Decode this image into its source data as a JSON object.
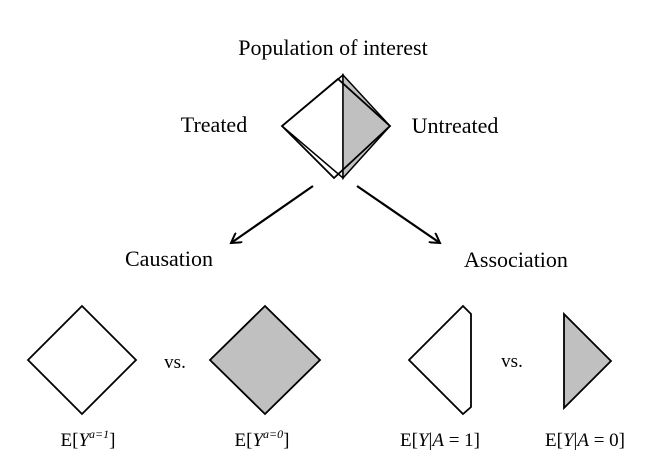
{
  "title": "Population of interest",
  "top_labels": {
    "left": "Treated",
    "right": "Untreated"
  },
  "branches": {
    "left": "Causation",
    "right": "Association"
  },
  "comparisons": {
    "left": {
      "separator": "vs.",
      "a": {
        "prefix": "E[",
        "var": "Y",
        "sup": "a=1",
        "suffix": "]"
      },
      "b": {
        "prefix": "E[",
        "var": "Y",
        "sup": "a=0",
        "suffix": "]"
      }
    },
    "right": {
      "separator": "vs.",
      "a": {
        "prefix": "E[",
        "var": "Y",
        "mid": "|",
        "avar": "A",
        "val": " = 1]"
      },
      "b": {
        "prefix": "E[",
        "var": "Y",
        "mid": "|",
        "avar": "A",
        "val": " = 0]"
      }
    }
  },
  "colors": {
    "fill_gray": "#c0c0c0",
    "stroke": "#000000",
    "fill_white": "#ffffff"
  }
}
